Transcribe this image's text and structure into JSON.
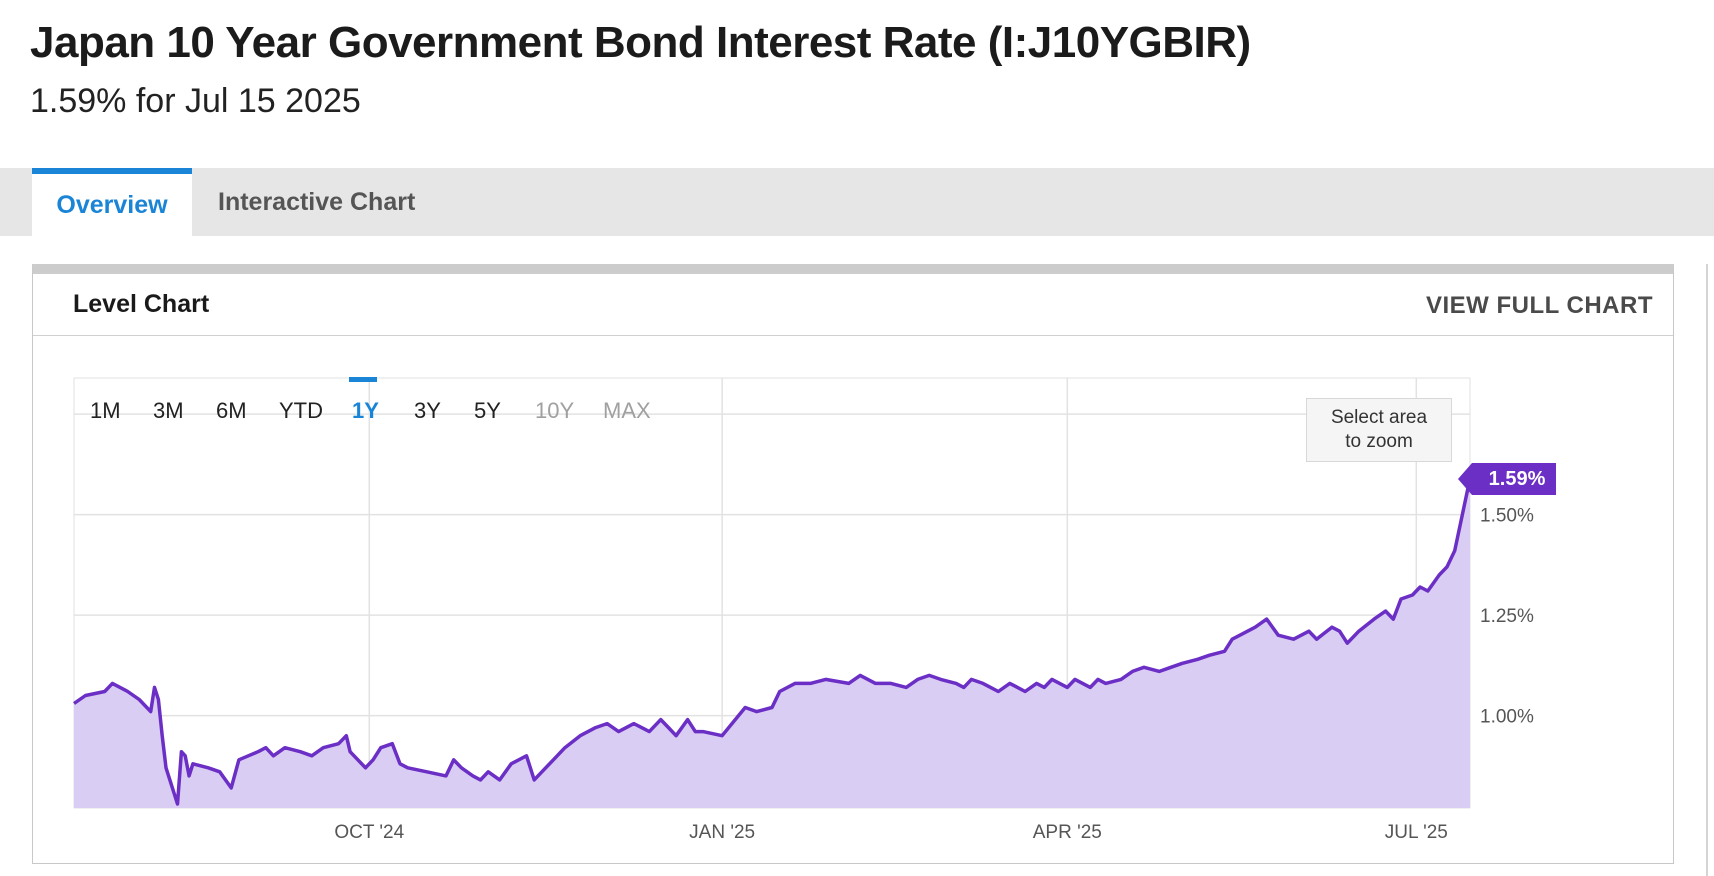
{
  "header": {
    "title": "Japan 10 Year Government Bond Interest Rate (I:J10YGBIR)",
    "subtitle": "1.59% for Jul 15 2025"
  },
  "tabs": [
    {
      "label": "Overview",
      "active": true
    },
    {
      "label": "Interactive Chart",
      "active": false
    }
  ],
  "panel": {
    "title": "Level Chart",
    "view_full_label": "VIEW FULL CHART"
  },
  "range_buttons": [
    {
      "label": "1M",
      "state": "enabled"
    },
    {
      "label": "3M",
      "state": "enabled"
    },
    {
      "label": "6M",
      "state": "enabled"
    },
    {
      "label": "YTD",
      "state": "enabled"
    },
    {
      "label": "1Y",
      "state": "active"
    },
    {
      "label": "3Y",
      "state": "enabled"
    },
    {
      "label": "5Y",
      "state": "enabled"
    },
    {
      "label": "10Y",
      "state": "disabled"
    },
    {
      "label": "MAX",
      "state": "disabled"
    }
  ],
  "zoom_hint": {
    "line1": "Select area",
    "line2": "to zoom"
  },
  "current_value_label": "1.59%",
  "colors": {
    "accent": "#1a84d6",
    "line": "#6b2fc6",
    "fill": "#dacdf3",
    "tab_bar": "#e6e6e6"
  },
  "chart_data": {
    "type": "area",
    "title": "",
    "xlabel": "",
    "ylabel": "",
    "x_domain": [
      "2024-07-16",
      "2025-07-15"
    ],
    "ylim": [
      0.77,
      1.84
    ],
    "y_ticks": [
      {
        "value": 1.0,
        "label": "1.00%"
      },
      {
        "value": 1.25,
        "label": "1.25%"
      },
      {
        "value": 1.5,
        "label": "1.50%"
      }
    ],
    "x_ticks": [
      {
        "date": "2024-10-01",
        "label": "OCT '24"
      },
      {
        "date": "2025-01-01",
        "label": "JAN '25"
      },
      {
        "date": "2025-04-01",
        "label": "APR '25"
      },
      {
        "date": "2025-07-01",
        "label": "JUL '25"
      }
    ],
    "grid": true,
    "series": [
      {
        "values": [
          [
            "2024-07-16",
            1.03
          ],
          [
            "2024-07-19",
            1.05
          ],
          [
            "2024-07-24",
            1.06
          ],
          [
            "2024-07-26",
            1.08
          ],
          [
            "2024-07-30",
            1.06
          ],
          [
            "2024-08-02",
            1.04
          ],
          [
            "2024-08-05",
            1.01
          ],
          [
            "2024-08-06",
            1.07
          ],
          [
            "2024-08-07",
            1.04
          ],
          [
            "2024-08-08",
            0.95
          ],
          [
            "2024-08-09",
            0.87
          ],
          [
            "2024-08-12",
            0.78
          ],
          [
            "2024-08-13",
            0.91
          ],
          [
            "2024-08-14",
            0.9
          ],
          [
            "2024-08-15",
            0.85
          ],
          [
            "2024-08-16",
            0.88
          ],
          [
            "2024-08-20",
            0.87
          ],
          [
            "2024-08-23",
            0.86
          ],
          [
            "2024-08-26",
            0.82
          ],
          [
            "2024-08-28",
            0.89
          ],
          [
            "2024-09-02",
            0.91
          ],
          [
            "2024-09-04",
            0.92
          ],
          [
            "2024-09-06",
            0.9
          ],
          [
            "2024-09-09",
            0.92
          ],
          [
            "2024-09-13",
            0.91
          ],
          [
            "2024-09-16",
            0.9
          ],
          [
            "2024-09-19",
            0.92
          ],
          [
            "2024-09-23",
            0.93
          ],
          [
            "2024-09-25",
            0.95
          ],
          [
            "2024-09-26",
            0.91
          ],
          [
            "2024-09-30",
            0.87
          ],
          [
            "2024-10-02",
            0.89
          ],
          [
            "2024-10-04",
            0.92
          ],
          [
            "2024-10-07",
            0.93
          ],
          [
            "2024-10-09",
            0.88
          ],
          [
            "2024-10-11",
            0.87
          ],
          [
            "2024-10-16",
            0.86
          ],
          [
            "2024-10-21",
            0.85
          ],
          [
            "2024-10-23",
            0.89
          ],
          [
            "2024-10-25",
            0.87
          ],
          [
            "2024-10-28",
            0.85
          ],
          [
            "2024-10-30",
            0.84
          ],
          [
            "2024-11-01",
            0.86
          ],
          [
            "2024-11-04",
            0.84
          ],
          [
            "2024-11-07",
            0.88
          ],
          [
            "2024-11-11",
            0.9
          ],
          [
            "2024-11-13",
            0.84
          ],
          [
            "2024-11-15",
            0.86
          ],
          [
            "2024-11-18",
            0.89
          ],
          [
            "2024-11-21",
            0.92
          ],
          [
            "2024-11-25",
            0.95
          ],
          [
            "2024-11-29",
            0.97
          ],
          [
            "2024-12-02",
            0.98
          ],
          [
            "2024-12-05",
            0.96
          ],
          [
            "2024-12-09",
            0.98
          ],
          [
            "2024-12-11",
            0.97
          ],
          [
            "2024-12-13",
            0.96
          ],
          [
            "2024-12-16",
            0.99
          ],
          [
            "2024-12-18",
            0.97
          ],
          [
            "2024-12-20",
            0.95
          ],
          [
            "2024-12-23",
            0.99
          ],
          [
            "2024-12-25",
            0.96
          ],
          [
            "2024-12-27",
            0.96
          ],
          [
            "2025-01-01",
            0.95
          ],
          [
            "2025-01-07",
            1.02
          ],
          [
            "2025-01-10",
            1.01
          ],
          [
            "2025-01-14",
            1.02
          ],
          [
            "2025-01-16",
            1.06
          ],
          [
            "2025-01-20",
            1.08
          ],
          [
            "2025-01-24",
            1.08
          ],
          [
            "2025-01-28",
            1.09
          ],
          [
            "2025-02-03",
            1.08
          ],
          [
            "2025-02-06",
            1.1
          ],
          [
            "2025-02-10",
            1.08
          ],
          [
            "2025-02-14",
            1.08
          ],
          [
            "2025-02-18",
            1.07
          ],
          [
            "2025-02-21",
            1.09
          ],
          [
            "2025-02-24",
            1.1
          ],
          [
            "2025-02-27",
            1.09
          ],
          [
            "2025-03-03",
            1.08
          ],
          [
            "2025-03-05",
            1.07
          ],
          [
            "2025-03-07",
            1.09
          ],
          [
            "2025-03-10",
            1.08
          ],
          [
            "2025-03-12",
            1.07
          ],
          [
            "2025-03-14",
            1.06
          ],
          [
            "2025-03-17",
            1.08
          ],
          [
            "2025-03-19",
            1.07
          ],
          [
            "2025-03-21",
            1.06
          ],
          [
            "2025-03-24",
            1.08
          ],
          [
            "2025-03-26",
            1.07
          ],
          [
            "2025-03-28",
            1.09
          ],
          [
            "2025-04-01",
            1.07
          ],
          [
            "2025-04-03",
            1.09
          ],
          [
            "2025-04-07",
            1.07
          ],
          [
            "2025-04-09",
            1.09
          ],
          [
            "2025-04-11",
            1.08
          ],
          [
            "2025-04-15",
            1.09
          ],
          [
            "2025-04-18",
            1.11
          ],
          [
            "2025-04-21",
            1.12
          ],
          [
            "2025-04-25",
            1.11
          ],
          [
            "2025-04-28",
            1.12
          ],
          [
            "2025-05-01",
            1.13
          ],
          [
            "2025-05-05",
            1.14
          ],
          [
            "2025-05-08",
            1.15
          ],
          [
            "2025-05-12",
            1.16
          ],
          [
            "2025-05-14",
            1.19
          ],
          [
            "2025-05-16",
            1.2
          ],
          [
            "2025-05-20",
            1.22
          ],
          [
            "2025-05-23",
            1.24
          ],
          [
            "2025-05-26",
            1.2
          ],
          [
            "2025-05-30",
            1.19
          ],
          [
            "2025-06-03",
            1.21
          ],
          [
            "2025-06-05",
            1.19
          ],
          [
            "2025-06-09",
            1.22
          ],
          [
            "2025-06-11",
            1.21
          ],
          [
            "2025-06-13",
            1.18
          ],
          [
            "2025-06-16",
            1.21
          ],
          [
            "2025-06-20",
            1.24
          ],
          [
            "2025-06-23",
            1.26
          ],
          [
            "2025-06-25",
            1.24
          ],
          [
            "2025-06-27",
            1.29
          ],
          [
            "2025-06-30",
            1.3
          ],
          [
            "2025-07-02",
            1.32
          ],
          [
            "2025-07-04",
            1.31
          ],
          [
            "2025-07-07",
            1.35
          ],
          [
            "2025-07-09",
            1.37
          ],
          [
            "2025-07-11",
            1.41
          ],
          [
            "2025-07-15",
            1.59
          ]
        ]
      }
    ]
  }
}
